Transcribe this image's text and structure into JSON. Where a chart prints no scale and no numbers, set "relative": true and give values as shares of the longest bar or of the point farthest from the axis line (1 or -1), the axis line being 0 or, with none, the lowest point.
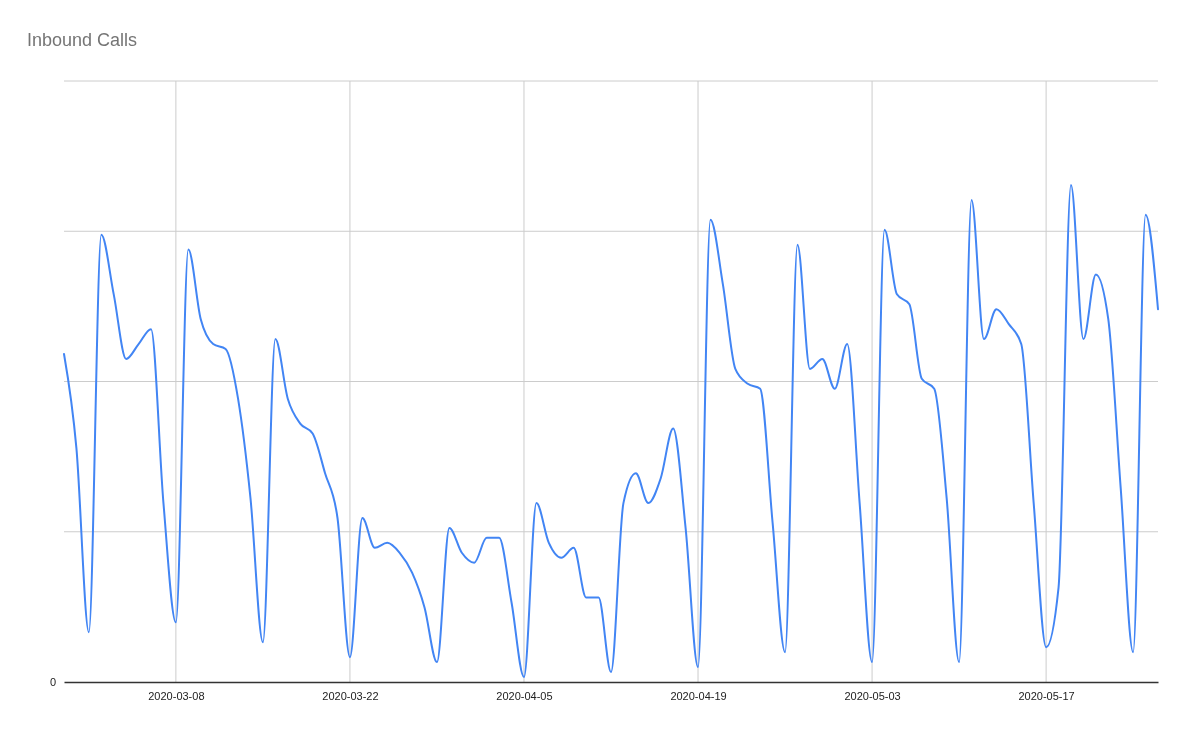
{
  "chart_data": {
    "type": "line",
    "title": "Inbound Calls",
    "relative": true,
    "grid": true,
    "annotations": [
      "0"
    ],
    "x": [
      "2020-02-28",
      "2020-02-29",
      "2020-03-01",
      "2020-03-02",
      "2020-03-03",
      "2020-03-04",
      "2020-03-05",
      "2020-03-06",
      "2020-03-07",
      "2020-03-08",
      "2020-03-09",
      "2020-03-10",
      "2020-03-11",
      "2020-03-12",
      "2020-03-13",
      "2020-03-14",
      "2020-03-15",
      "2020-03-16",
      "2020-03-17",
      "2020-03-18",
      "2020-03-19",
      "2020-03-20",
      "2020-03-21",
      "2020-03-22",
      "2020-03-23",
      "2020-03-24",
      "2020-03-25",
      "2020-03-26",
      "2020-03-27",
      "2020-03-28",
      "2020-03-29",
      "2020-03-30",
      "2020-03-31",
      "2020-04-01",
      "2020-04-02",
      "2020-04-03",
      "2020-04-04",
      "2020-04-05",
      "2020-04-06",
      "2020-04-07",
      "2020-04-08",
      "2020-04-09",
      "2020-04-10",
      "2020-04-11",
      "2020-04-12",
      "2020-04-13",
      "2020-04-14",
      "2020-04-15",
      "2020-04-16",
      "2020-04-17",
      "2020-04-18",
      "2020-04-19",
      "2020-04-20",
      "2020-04-21",
      "2020-04-22",
      "2020-04-23",
      "2020-04-24",
      "2020-04-25",
      "2020-04-26",
      "2020-04-27",
      "2020-04-28",
      "2020-04-29",
      "2020-04-30",
      "2020-05-01",
      "2020-05-02",
      "2020-05-03",
      "2020-05-04",
      "2020-05-05",
      "2020-05-06",
      "2020-05-07",
      "2020-05-08",
      "2020-05-09",
      "2020-05-10",
      "2020-05-11",
      "2020-05-12",
      "2020-05-13",
      "2020-05-14",
      "2020-05-15",
      "2020-05-16",
      "2020-05-17",
      "2020-05-18",
      "2020-05-19",
      "2020-05-20",
      "2020-05-21",
      "2020-05-22",
      "2020-05-23",
      "2020-05-24",
      "2020-05-25",
      "2020-05-26"
    ],
    "xlim": [
      "2020-02-28",
      "2020-05-26"
    ],
    "xticks": [
      "2020-03-08",
      "2020-03-22",
      "2020-04-05",
      "2020-04-19",
      "2020-05-03",
      "2020-05-17"
    ],
    "series": [
      {
        "color": "#4285f4",
        "values": [
          0.66,
          0.47,
          0.1,
          0.9,
          0.78,
          0.65,
          0.68,
          0.71,
          0.36,
          0.12,
          0.87,
          0.73,
          0.68,
          0.67,
          0.57,
          0.37,
          0.08,
          0.69,
          0.57,
          0.52,
          0.5,
          0.42,
          0.33,
          0.05,
          0.33,
          0.27,
          0.28,
          0.26,
          0.22,
          0.15,
          0.04,
          0.31,
          0.26,
          0.24,
          0.29,
          0.29,
          0.16,
          0.01,
          0.36,
          0.28,
          0.25,
          0.27,
          0.17,
          0.17,
          0.02,
          0.36,
          0.42,
          0.36,
          0.41,
          0.51,
          0.31,
          0.03,
          0.93,
          0.8,
          0.63,
          0.6,
          0.59,
          0.32,
          0.06,
          0.88,
          0.63,
          0.65,
          0.59,
          0.68,
          0.36,
          0.04,
          0.91,
          0.78,
          0.76,
          0.61,
          0.59,
          0.37,
          0.04,
          0.97,
          0.69,
          0.75,
          0.72,
          0.68,
          0.36,
          0.07,
          0.19,
          1,
          0.69,
          0.82,
          0.73,
          0.39,
          0.06,
          0.94,
          0.75
        ]
      }
    ]
  }
}
